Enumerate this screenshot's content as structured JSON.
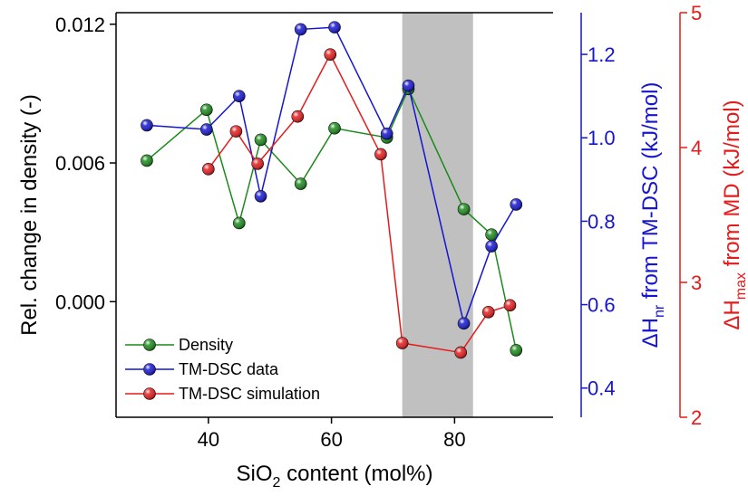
{
  "chart_data": {
    "type": "line",
    "xlabel": {
      "main": "SiO",
      "sub": "2",
      "rest": " content (mol%)"
    },
    "ylabel_left": "Rel. change in density (-)",
    "ylabel_right1": {
      "main": "ΔH",
      "sub": "nr",
      "rest": " from TM-DSC (kJ/mol)"
    },
    "ylabel_right2": {
      "main": "ΔH",
      "sub": "max",
      "rest": " from MD (kJ/mol)"
    },
    "xlim": [
      25,
      96
    ],
    "ylim_left": [
      -0.005,
      0.0125
    ],
    "ylim_right1": [
      0.33,
      1.3
    ],
    "ylim_right2": [
      2,
      5
    ],
    "x_ticks": [
      40,
      60,
      80
    ],
    "y_left_ticks": [
      "0.000",
      "0.006",
      "0.012"
    ],
    "y_left_tick_values": [
      0.0,
      0.006,
      0.012
    ],
    "y_right1_ticks": [
      "0.4",
      "0.6",
      "0.8",
      "1.0",
      "1.2"
    ],
    "y_right1_tick_values": [
      0.4,
      0.6,
      0.8,
      1.0,
      1.2
    ],
    "y_right2_ticks": [
      "2",
      "3",
      "4",
      "5"
    ],
    "y_right2_tick_values": [
      2,
      3,
      4,
      5
    ],
    "shaded_region": {
      "x": [
        71.5,
        83
      ],
      "color": "#c0c0c0"
    },
    "legend_position": "bottom-left",
    "series": [
      {
        "name": "Density",
        "axis": "left",
        "color": "#1a8a1a",
        "x": [
          30,
          39.7,
          45,
          48.5,
          55,
          60.5,
          69,
          72.5,
          81.5,
          86,
          90
        ],
        "y": [
          0.0061,
          0.0083,
          0.0034,
          0.007,
          0.0051,
          0.0075,
          0.0071,
          0.0092,
          0.004,
          0.0029,
          -0.0021
        ]
      },
      {
        "name": "TM-DSC data",
        "axis": "right1",
        "color": "#1515d0",
        "x": [
          30,
          39.7,
          45,
          48.5,
          55,
          60.5,
          69,
          72.5,
          81.5,
          86,
          90
        ],
        "y": [
          1.03,
          1.02,
          1.1,
          0.86,
          1.26,
          1.265,
          1.01,
          1.125,
          0.555,
          0.74,
          0.84
        ]
      },
      {
        "name": "TM-DSC simulation",
        "axis": "right2",
        "color": "#e51b1b",
        "x": [
          40,
          44.5,
          48,
          54.5,
          59.8,
          68,
          71.5,
          81,
          85.5,
          89
        ],
        "y": [
          3.84,
          4.12,
          3.88,
          4.23,
          4.69,
          3.95,
          2.55,
          2.48,
          2.78,
          2.83
        ]
      }
    ]
  }
}
